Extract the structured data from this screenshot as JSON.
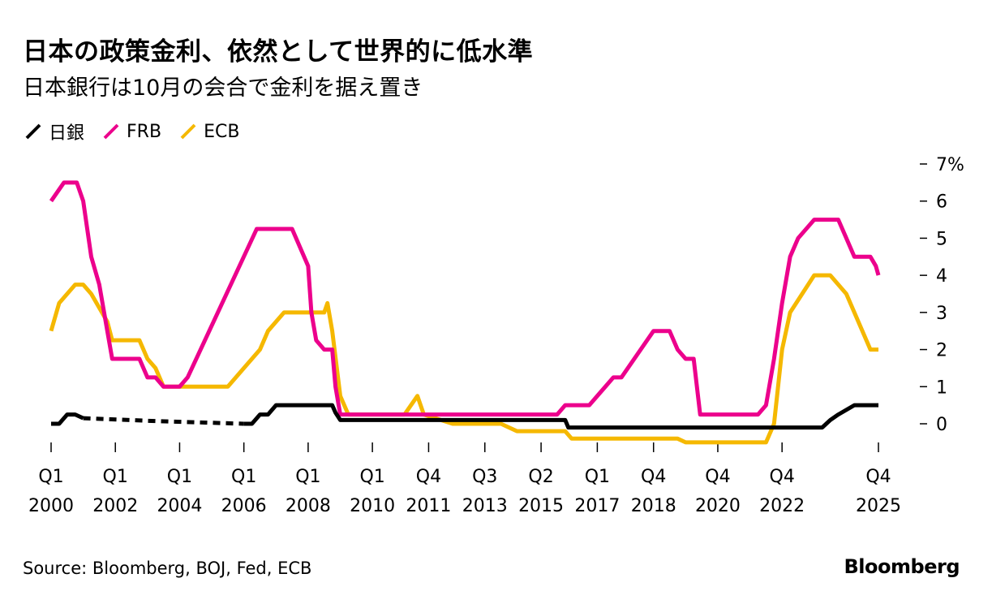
{
  "title": "日本の政策金利、依然として世界的に低水準",
  "subtitle": "日本銀行は10月の会合で金利を据え置き",
  "source": "Source: Bloomberg, BOJ, Fed, ECB",
  "brand": "Bloomberg",
  "colors": {
    "boj": "#000000",
    "frb": "#ec008c",
    "ecb": "#f5b800",
    "axis": "#000000"
  },
  "chart_data": {
    "type": "line",
    "title": "日本の政策金利、依然として世界的に低水準",
    "subtitle": "日本銀行は10月の会合で金利を据え置き",
    "legend_position": "top-left",
    "grid": false,
    "xlim": [
      2000.0,
      2025.75
    ],
    "ylim": [
      -0.5,
      7
    ],
    "y_axis": {
      "position": "right",
      "ticks": [
        0,
        1,
        2,
        3,
        4,
        5,
        6,
        7
      ],
      "tick_labels": [
        "0",
        "1",
        "2",
        "3",
        "4",
        "5",
        "6",
        "7%"
      ]
    },
    "x_axis": {
      "ticks": [
        {
          "x": 2000.0,
          "q": "Q1",
          "y": "2000"
        },
        {
          "x": 2002.0,
          "q": "Q1",
          "y": "2002"
        },
        {
          "x": 2004.0,
          "q": "Q1",
          "y": "2004"
        },
        {
          "x": 2006.0,
          "q": "Q1",
          "y": "2006"
        },
        {
          "x": 2008.0,
          "q": "Q1",
          "y": "2008"
        },
        {
          "x": 2010.0,
          "q": "Q1",
          "y": "2010"
        },
        {
          "x": 2011.75,
          "q": "Q4",
          "y": "2011"
        },
        {
          "x": 2013.5,
          "q": "Q3",
          "y": "2013"
        },
        {
          "x": 2015.25,
          "q": "Q2",
          "y": "2015"
        },
        {
          "x": 2017.0,
          "q": "Q1",
          "y": "2017"
        },
        {
          "x": 2018.75,
          "q": "Q4",
          "y": "2018"
        },
        {
          "x": 2020.75,
          "q": "Q4",
          "y": "2020"
        },
        {
          "x": 2022.75,
          "q": "Q4",
          "y": "2022"
        },
        {
          "x": 2025.75,
          "q": "Q4",
          "y": "2025"
        }
      ]
    },
    "series": [
      {
        "name": "日銀",
        "color_key": "boj",
        "segments": [
          {
            "style": "solid",
            "points": [
              [
                2000.0,
                0.0
              ],
              [
                2000.25,
                0.0
              ],
              [
                2000.5,
                0.25
              ],
              [
                2000.75,
                0.25
              ],
              [
                2001.0,
                0.15
              ]
            ]
          },
          {
            "style": "dashed",
            "points": [
              [
                2001.0,
                0.15
              ],
              [
                2003.0,
                0.08
              ],
              [
                2006.0,
                0.0
              ]
            ]
          },
          {
            "style": "solid",
            "points": [
              [
                2006.0,
                0.0
              ],
              [
                2006.25,
                0.0
              ],
              [
                2006.5,
                0.25
              ],
              [
                2006.75,
                0.25
              ],
              [
                2007.0,
                0.5
              ],
              [
                2008.75,
                0.5
              ],
              [
                2008.85,
                0.3
              ],
              [
                2009.0,
                0.1
              ],
              [
                2016.0,
                0.1
              ],
              [
                2016.1,
                -0.1
              ],
              [
                2024.0,
                -0.1
              ],
              [
                2024.25,
                0.1
              ],
              [
                2024.5,
                0.25
              ],
              [
                2025.0,
                0.5
              ],
              [
                2025.75,
                0.5
              ]
            ]
          }
        ]
      },
      {
        "name": "FRB",
        "color_key": "frb",
        "segments": [
          {
            "style": "solid",
            "points": [
              [
                2000.0,
                6.0
              ],
              [
                2000.4,
                6.5
              ],
              [
                2000.8,
                6.5
              ],
              [
                2001.0,
                6.0
              ],
              [
                2001.25,
                4.5
              ],
              [
                2001.5,
                3.75
              ],
              [
                2001.75,
                2.5
              ],
              [
                2001.9,
                1.75
              ],
              [
                2002.75,
                1.75
              ],
              [
                2003.0,
                1.25
              ],
              [
                2003.25,
                1.25
              ],
              [
                2003.5,
                1.0
              ],
              [
                2004.0,
                1.0
              ],
              [
                2004.25,
                1.25
              ],
              [
                2006.4,
                5.25
              ],
              [
                2007.5,
                5.25
              ],
              [
                2008.0,
                4.25
              ],
              [
                2008.1,
                3.0
              ],
              [
                2008.25,
                2.25
              ],
              [
                2008.5,
                2.0
              ],
              [
                2008.75,
                2.0
              ],
              [
                2008.85,
                1.0
              ],
              [
                2009.0,
                0.25
              ],
              [
                2015.75,
                0.25
              ],
              [
                2016.0,
                0.5
              ],
              [
                2016.75,
                0.5
              ],
              [
                2017.0,
                0.75
              ],
              [
                2017.25,
                1.0
              ],
              [
                2017.5,
                1.25
              ],
              [
                2017.75,
                1.25
              ],
              [
                2018.75,
                2.5
              ],
              [
                2019.25,
                2.5
              ],
              [
                2019.5,
                2.0
              ],
              [
                2019.75,
                1.75
              ],
              [
                2020.0,
                1.75
              ],
              [
                2020.2,
                0.25
              ],
              [
                2022.0,
                0.25
              ],
              [
                2022.25,
                0.5
              ],
              [
                2022.5,
                1.75
              ],
              [
                2022.75,
                3.25
              ],
              [
                2023.0,
                4.5
              ],
              [
                2023.25,
                5.0
              ],
              [
                2023.75,
                5.5
              ],
              [
                2024.5,
                5.5
              ],
              [
                2024.75,
                5.0
              ],
              [
                2025.0,
                4.5
              ],
              [
                2025.5,
                4.5
              ],
              [
                2025.67,
                4.25
              ],
              [
                2025.75,
                4.0
              ]
            ]
          }
        ]
      },
      {
        "name": "ECB",
        "color_key": "ecb",
        "segments": [
          {
            "style": "solid",
            "points": [
              [
                2000.0,
                2.5
              ],
              [
                2000.25,
                3.25
              ],
              [
                2000.75,
                3.75
              ],
              [
                2001.0,
                3.75
              ],
              [
                2001.25,
                3.5
              ],
              [
                2001.75,
                2.75
              ],
              [
                2001.9,
                2.25
              ],
              [
                2002.5,
                2.25
              ],
              [
                2002.75,
                2.25
              ],
              [
                2003.0,
                1.75
              ],
              [
                2003.25,
                1.5
              ],
              [
                2003.5,
                1.0
              ],
              [
                2005.5,
                1.0
              ],
              [
                2006.0,
                1.5
              ],
              [
                2006.5,
                2.0
              ],
              [
                2006.75,
                2.5
              ],
              [
                2007.25,
                3.0
              ],
              [
                2008.5,
                3.0
              ],
              [
                2008.6,
                3.25
              ],
              [
                2008.75,
                2.5
              ],
              [
                2009.0,
                0.75
              ],
              [
                2009.25,
                0.25
              ],
              [
                2011.0,
                0.25
              ],
              [
                2011.4,
                0.75
              ],
              [
                2011.6,
                0.25
              ],
              [
                2012.5,
                0.0
              ],
              [
                2014.0,
                0.0
              ],
              [
                2014.5,
                -0.2
              ],
              [
                2016.0,
                -0.2
              ],
              [
                2016.2,
                -0.4
              ],
              [
                2019.5,
                -0.4
              ],
              [
                2019.75,
                -0.5
              ],
              [
                2022.25,
                -0.5
              ],
              [
                2022.5,
                0.0
              ],
              [
                2022.75,
                2.0
              ],
              [
                2023.0,
                3.0
              ],
              [
                2023.75,
                4.0
              ],
              [
                2024.25,
                4.0
              ],
              [
                2024.75,
                3.5
              ],
              [
                2025.5,
                2.0
              ],
              [
                2025.75,
                2.0
              ]
            ]
          }
        ]
      }
    ]
  }
}
